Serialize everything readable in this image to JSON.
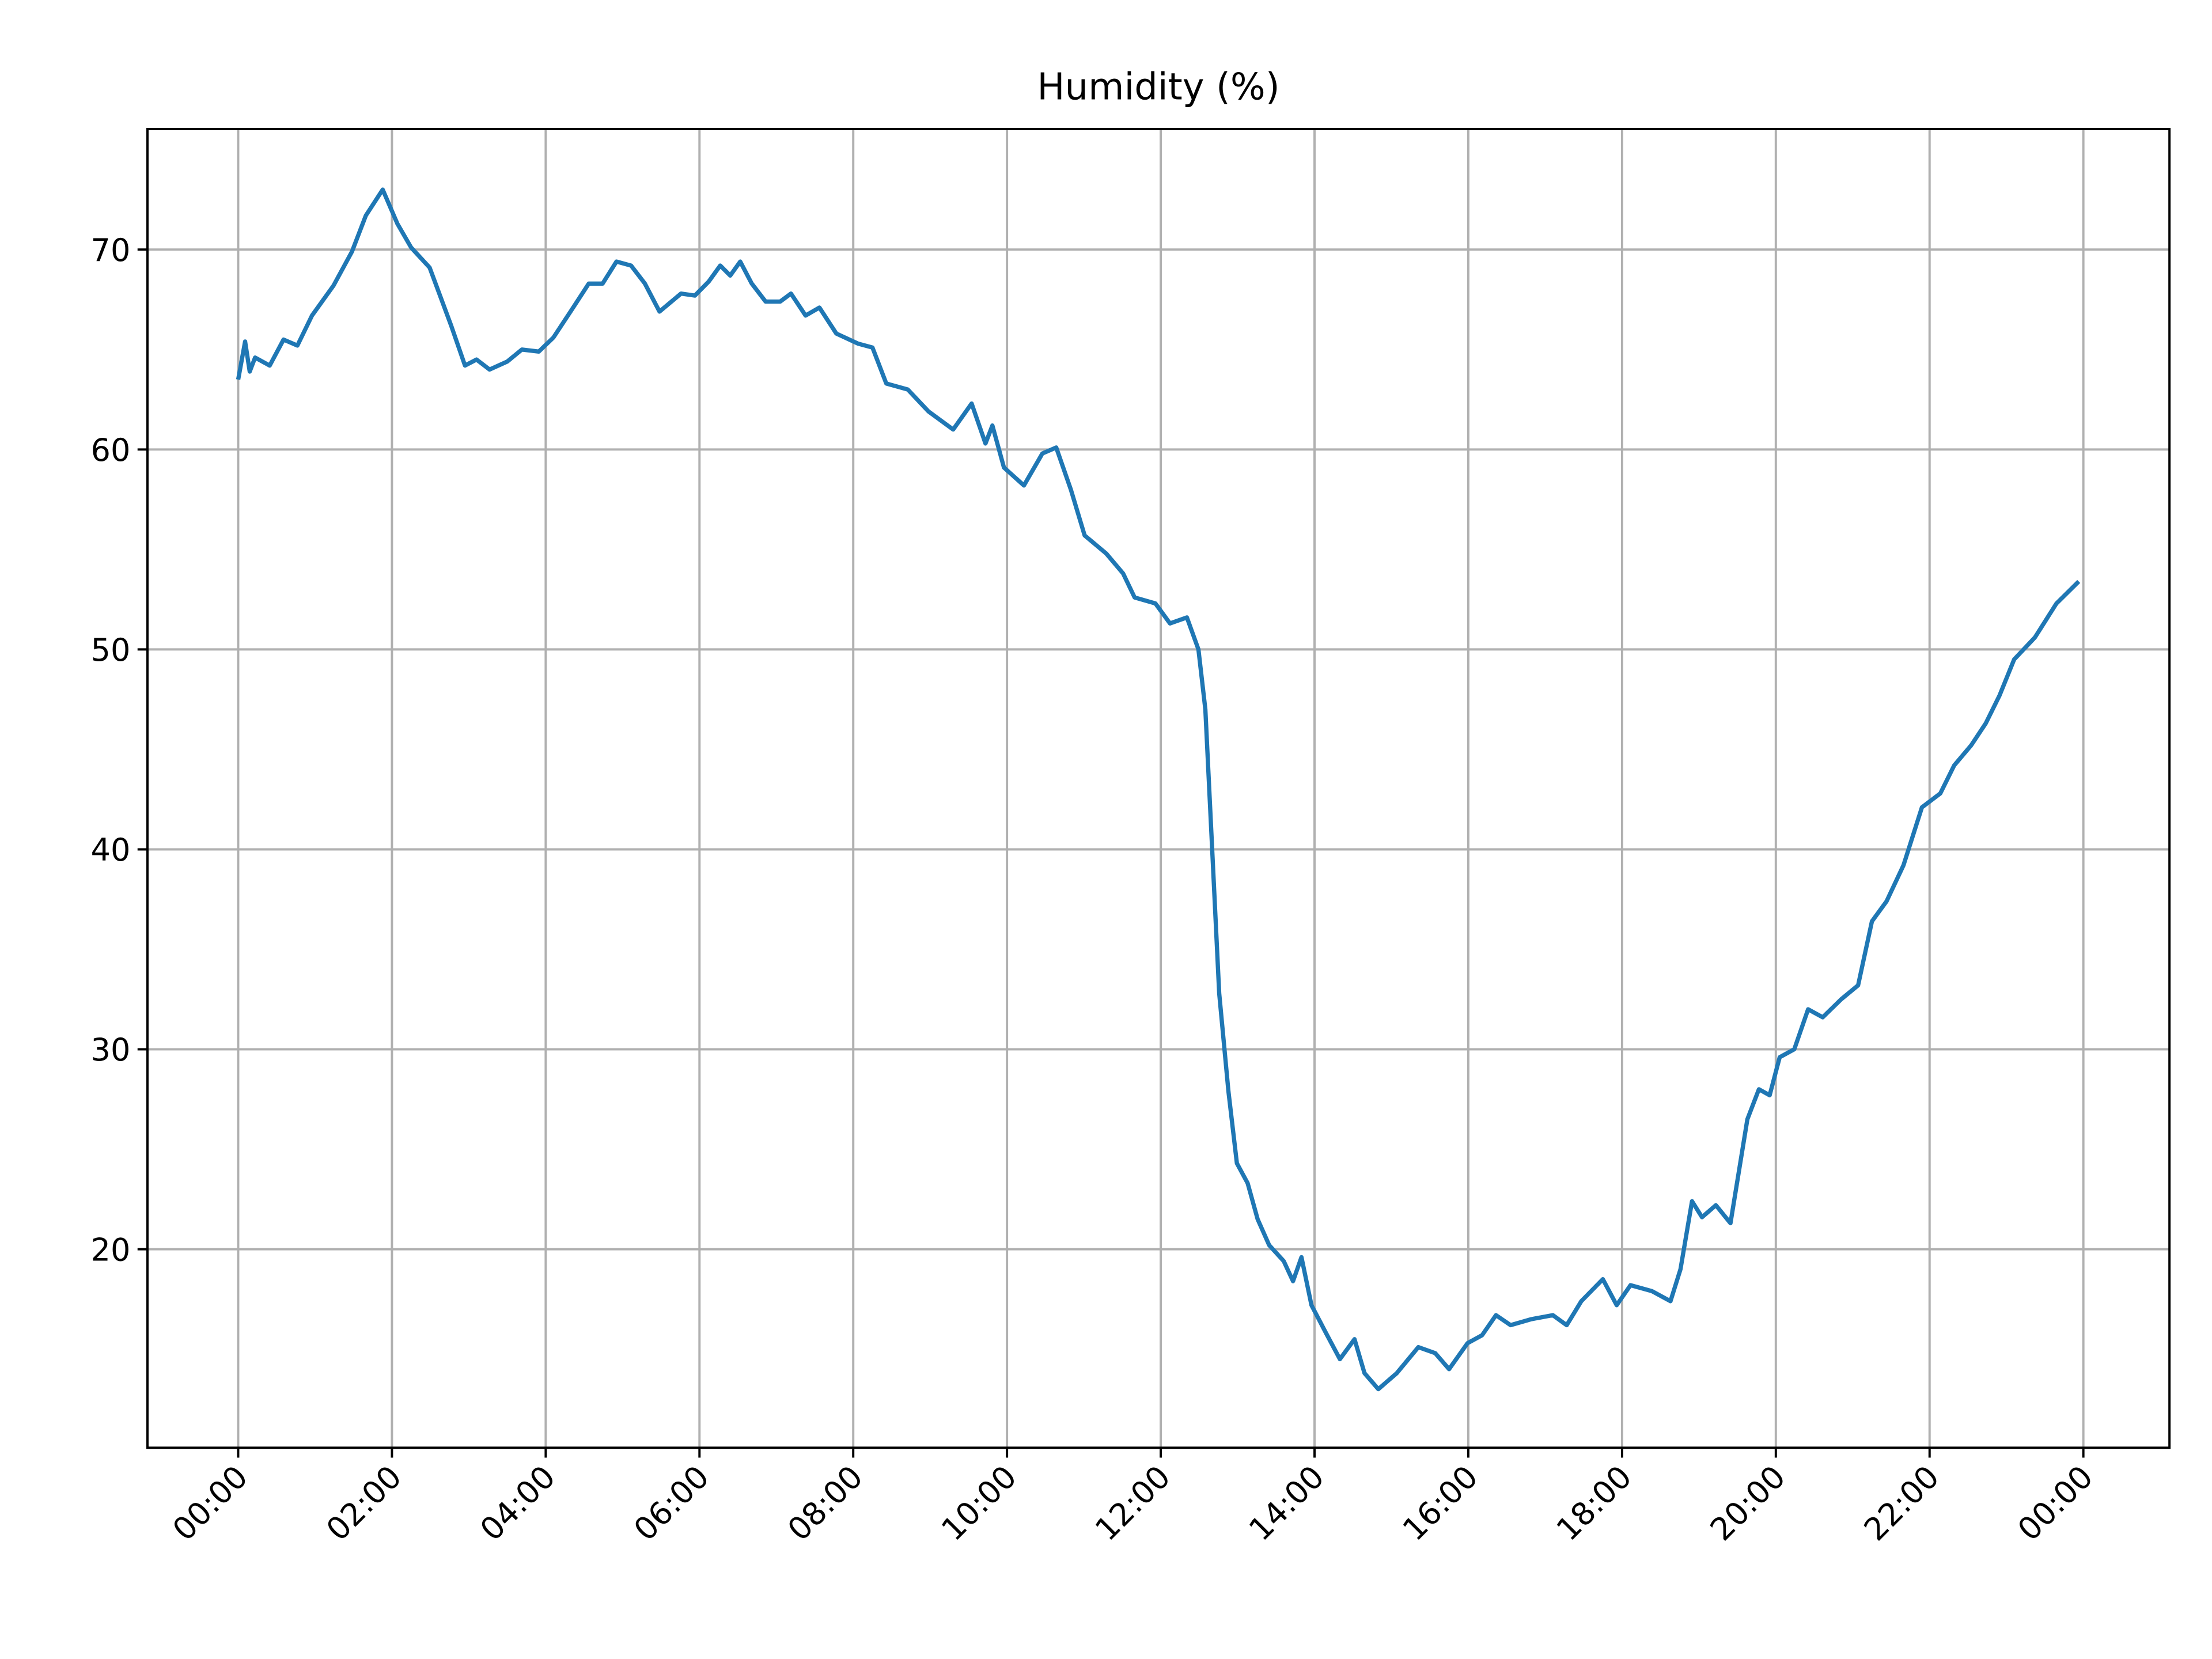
{
  "chart_data": {
    "type": "line",
    "title": "Humidity (%)",
    "x": [
      0,
      0.09,
      0.15,
      0.22,
      0.41,
      0.59,
      0.77,
      0.96,
      1.24,
      1.48,
      1.66,
      1.88,
      2.07,
      2.25,
      2.49,
      2.77,
      2.95,
      3.1,
      3.27,
      3.5,
      3.69,
      3.91,
      4.1,
      4.34,
      4.56,
      4.74,
      4.92,
      5.11,
      5.29,
      5.48,
      5.76,
      5.94,
      6.12,
      6.27,
      6.4,
      6.53,
      6.68,
      6.86,
      7.05,
      7.19,
      7.38,
      7.56,
      7.78,
      8.06,
      8.25,
      8.43,
      8.71,
      8.98,
      9.3,
      9.54,
      9.72,
      9.81,
      9.96,
      10.22,
      10.46,
      10.64,
      10.83,
      11.01,
      11.29,
      11.51,
      11.66,
      11.93,
      12.12,
      12.34,
      12.49,
      12.58,
      12.67,
      12.76,
      12.88,
      12.99,
      13.13,
      13.26,
      13.41,
      13.6,
      13.72,
      13.83,
      13.96,
      14.15,
      14.33,
      14.52,
      14.65,
      14.83,
      15.07,
      15.35,
      15.57,
      15.75,
      15.99,
      16.18,
      16.36,
      16.55,
      16.82,
      17.1,
      17.28,
      17.47,
      17.75,
      17.93,
      18.11,
      18.39,
      18.63,
      18.76,
      18.91,
      19.04,
      19.22,
      19.41,
      19.63,
      19.78,
      19.92,
      20.05,
      20.24,
      20.42,
      20.61,
      20.85,
      21.07,
      21.25,
      21.44,
      21.66,
      21.9,
      22.14,
      22.32,
      22.54,
      22.73,
      22.91,
      23.1,
      23.37,
      23.65,
      23.94
    ],
    "series": [
      {
        "color": "#1f77b4",
        "values": [
          63.5,
          65.4,
          63.9,
          64.6,
          64.2,
          65.5,
          65.2,
          66.7,
          68.2,
          69.9,
          71.7,
          73.0,
          71.3,
          70.1,
          69.1,
          66.2,
          64.2,
          64.5,
          64.0,
          64.4,
          65.0,
          64.9,
          65.6,
          67.0,
          68.3,
          68.3,
          69.4,
          69.2,
          68.3,
          66.9,
          67.8,
          67.7,
          68.4,
          69.2,
          68.7,
          69.4,
          68.3,
          67.4,
          67.4,
          67.8,
          66.7,
          67.1,
          65.8,
          65.3,
          65.1,
          63.3,
          63.0,
          61.9,
          61.0,
          62.3,
          60.3,
          61.2,
          59.1,
          58.2,
          59.8,
          60.1,
          58.0,
          55.7,
          54.8,
          53.8,
          52.6,
          52.3,
          51.3,
          51.6,
          50.0,
          47.0,
          39.9,
          32.8,
          27.9,
          24.3,
          23.3,
          21.5,
          20.2,
          19.4,
          18.4,
          19.6,
          17.2,
          15.8,
          14.5,
          15.5,
          13.8,
          13.0,
          13.8,
          15.1,
          14.8,
          14.0,
          15.3,
          15.7,
          16.7,
          16.2,
          16.5,
          16.7,
          16.2,
          17.4,
          18.5,
          17.2,
          18.2,
          17.9,
          17.4,
          19.0,
          22.4,
          21.6,
          22.2,
          21.3,
          26.5,
          28.0,
          27.7,
          29.6,
          30.0,
          32.0,
          31.6,
          32.5,
          33.2,
          36.4,
          37.4,
          39.2,
          42.1,
          42.8,
          44.2,
          45.2,
          46.3,
          47.7,
          49.5,
          50.6,
          52.3,
          53.4
        ]
      }
    ],
    "xlim": [
      -1.18,
      25.12
    ],
    "xticks": [
      {
        "value": 0,
        "label": "00:00"
      },
      {
        "value": 2,
        "label": "02:00"
      },
      {
        "value": 4,
        "label": "04:00"
      },
      {
        "value": 6,
        "label": "06:00"
      },
      {
        "value": 8,
        "label": "08:00"
      },
      {
        "value": 10,
        "label": "10:00"
      },
      {
        "value": 12,
        "label": "12:00"
      },
      {
        "value": 14,
        "label": "14:00"
      },
      {
        "value": 16,
        "label": "16:00"
      },
      {
        "value": 18,
        "label": "18:00"
      },
      {
        "value": 20,
        "label": "20:00"
      },
      {
        "value": 22,
        "label": "22:00"
      },
      {
        "value": 24,
        "label": "00:00"
      }
    ],
    "ylim": [
      10.07,
      76.03
    ],
    "yticks": [
      20,
      30,
      40,
      50,
      60,
      70
    ],
    "grid": true
  }
}
